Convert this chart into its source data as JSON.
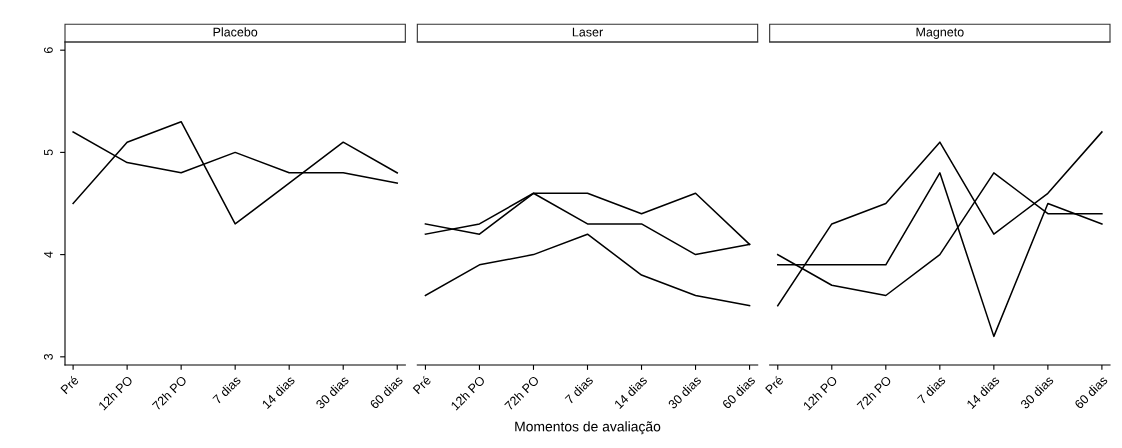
{
  "chart_data": [
    {
      "type": "line",
      "title": "Placebo",
      "categories": [
        "Pré",
        "12h PO",
        "72h PO",
        "7 dias",
        "14 dias",
        "30 dias",
        "60 dias"
      ],
      "ylim": [
        2.92,
        6.08
      ],
      "yticks": [
        3,
        4,
        5,
        6
      ],
      "grid": false,
      "legend": false,
      "series": [
        {
          "color": "#000000",
          "values": [
            5.2,
            4.9,
            4.8,
            5.0,
            4.8,
            4.8,
            4.7
          ]
        },
        {
          "color": "#000000",
          "values": [
            4.5,
            5.1,
            5.3,
            4.3,
            4.7,
            5.1,
            4.8
          ]
        }
      ]
    },
    {
      "type": "line",
      "title": "Laser",
      "xlabel": "Momentos de avaliação",
      "categories": [
        "Pré",
        "12h PO",
        "72h PO",
        "7 dias",
        "14 dias",
        "30 dias",
        "60 dias"
      ],
      "ylim": [
        2.92,
        6.08
      ],
      "tick_labels": "x",
      "grid": false,
      "legend": false,
      "series": [
        {
          "color": "#000000",
          "values": [
            4.2,
            4.3,
            4.6,
            4.6,
            4.4,
            4.6,
            4.1
          ]
        },
        {
          "color": "#000000",
          "values": [
            4.3,
            4.2,
            4.6,
            4.3,
            4.3,
            4.0,
            4.1
          ]
        },
        {
          "color": "#000000",
          "values": [
            3.6,
            3.9,
            4.0,
            4.2,
            3.8,
            3.6,
            3.5
          ]
        }
      ]
    },
    {
      "type": "line",
      "title": "Magneto",
      "categories": [
        "Pré",
        "12h PO",
        "72h PO",
        "7 dias",
        "14 dias",
        "30 dias",
        "60 dias"
      ],
      "ylim": [
        2.92,
        6.08
      ],
      "tick_labels": "x",
      "grid": false,
      "legend": false,
      "series": [
        {
          "color": "#000000",
          "values": [
            3.5,
            4.3,
            4.5,
            5.1,
            4.2,
            4.6,
            5.2
          ]
        },
        {
          "color": "#000000",
          "values": [
            3.9,
            3.9,
            3.9,
            4.8,
            3.2,
            4.5,
            4.3
          ]
        },
        {
          "color": "#000000",
          "values": [
            4.0,
            3.7,
            3.6,
            4.0,
            4.8,
            4.4,
            4.4
          ]
        }
      ]
    }
  ]
}
